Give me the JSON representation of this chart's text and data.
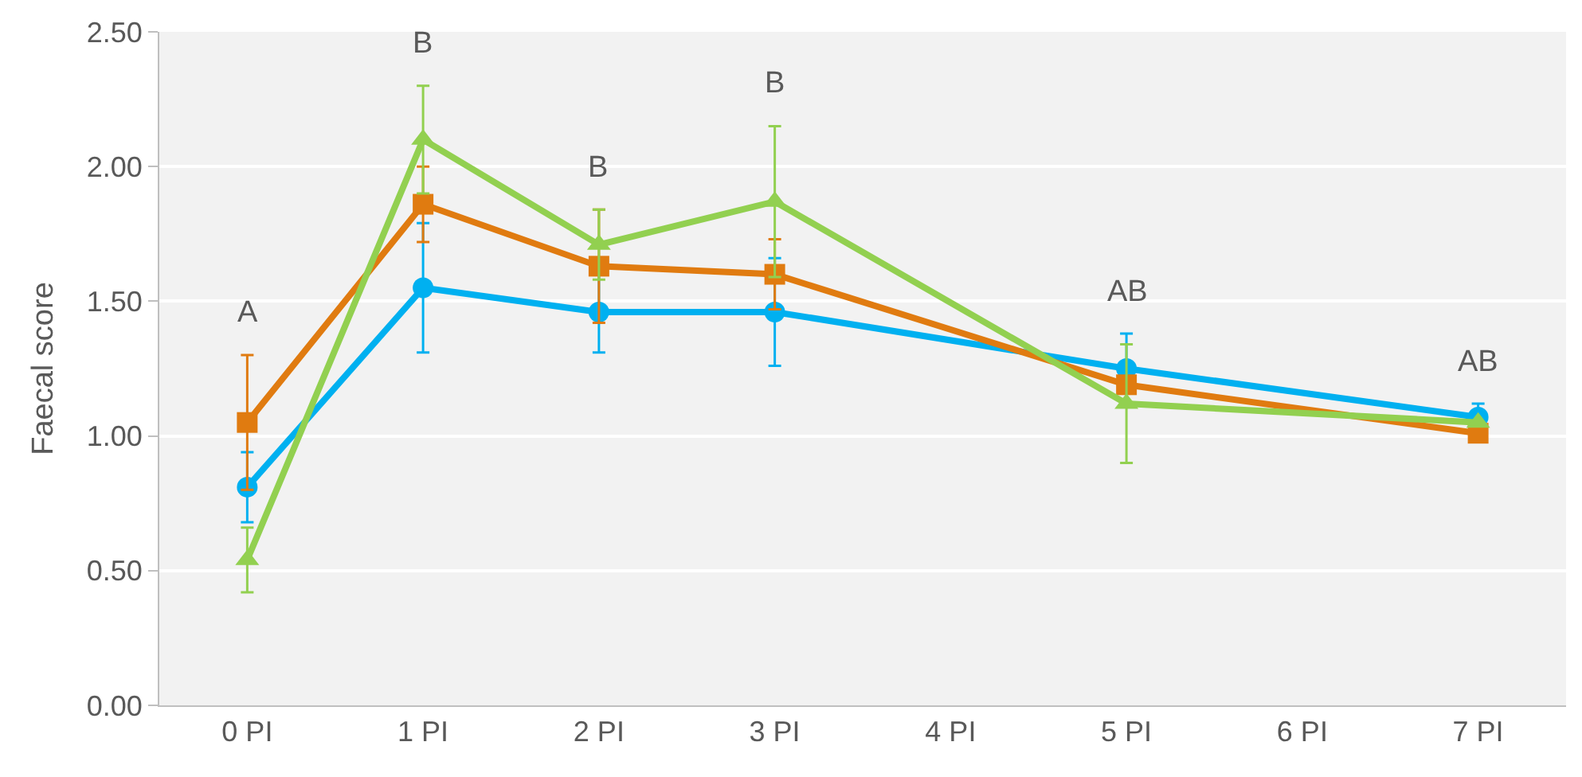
{
  "chart_data": {
    "type": "line",
    "ylabel": "Faecal score",
    "categories": [
      "0 PI",
      "1 PI",
      "2 PI",
      "3 PI",
      "4 PI",
      "5 PI",
      "6 PI",
      "7 PI"
    ],
    "series": [
      {
        "color": "#00b0f0",
        "marker": "circle",
        "values": [
          0.81,
          1.55,
          1.46,
          1.46,
          null,
          1.25,
          null,
          1.07
        ],
        "errors": [
          0.13,
          0.24,
          0.15,
          0.2,
          null,
          0.13,
          null,
          0.05
        ]
      },
      {
        "color": "#e07b10",
        "marker": "square",
        "values": [
          1.05,
          1.86,
          1.63,
          1.6,
          null,
          1.19,
          null,
          1.01
        ],
        "errors": [
          0.25,
          0.14,
          0.21,
          0.13,
          null,
          null,
          null,
          null
        ]
      },
      {
        "color": "#92d050",
        "marker": "triangle",
        "values": [
          0.54,
          2.1,
          1.71,
          1.87,
          null,
          1.12,
          null,
          1.05
        ],
        "errors": [
          0.12,
          0.2,
          0.13,
          0.28,
          null,
          0.22,
          null,
          null
        ]
      }
    ],
    "ylim": [
      0,
      2.5
    ],
    "yticks": [
      {
        "value": 0,
        "label": "0.00"
      },
      {
        "value": 0.5,
        "label": "0.50"
      },
      {
        "value": 1,
        "label": "1.00"
      },
      {
        "value": 1.5,
        "label": "1.50"
      },
      {
        "value": 2,
        "label": "2.00"
      },
      {
        "value": 2.5,
        "label": "2.50"
      }
    ],
    "grid": "y",
    "line_style": "solid",
    "annotations": [
      "A",
      "B",
      "B",
      "B",
      "AB",
      "AB"
    ]
  }
}
